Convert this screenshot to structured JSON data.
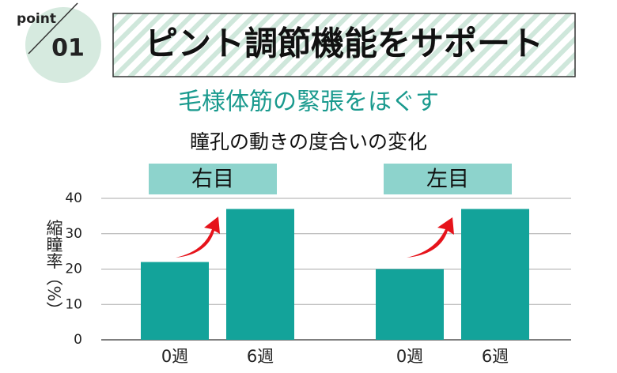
{
  "header": {
    "point": "point",
    "number": "01",
    "title": "ピント調節機能をサポート"
  },
  "subtitle": "毛様体筋の緊張をほぐす",
  "heading": "瞳孔の動きの度合いの変化",
  "chart_data": {
    "type": "bar",
    "ylabel": "縮瞳率（%）",
    "color": "#13a39a",
    "grid": true,
    "ylim": [
      0,
      40
    ],
    "yticks": [
      0,
      10,
      20,
      30,
      40
    ],
    "groups": [
      {
        "name": "右目",
        "categories": [
          "0週",
          "6週"
        ],
        "values": [
          22,
          37
        ]
      },
      {
        "name": "左目",
        "categories": [
          "0週",
          "6週"
        ],
        "values": [
          20,
          37
        ]
      }
    ]
  }
}
